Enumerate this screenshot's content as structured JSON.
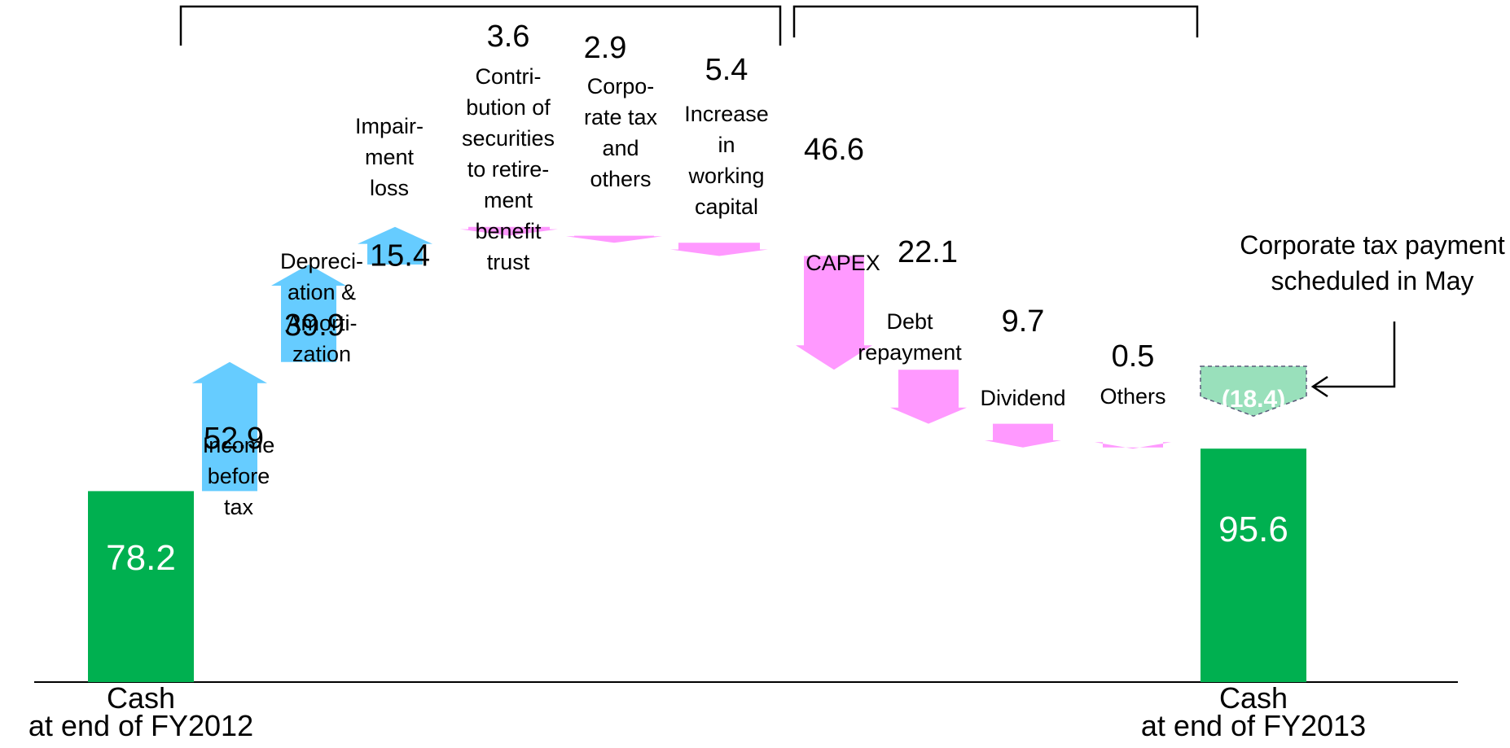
{
  "colors": {
    "cash": "#00B050",
    "increase": "#66CCFF",
    "decrease": "#FF99FF",
    "tax_scheduled": "#99E0BB",
    "text": "#000000",
    "cash_value_text": "#FFFFFF"
  },
  "chart_data": {
    "type": "waterfall",
    "title": "",
    "xlabel": "",
    "ylabel": "",
    "ylim": [
      0,
      200
    ],
    "grid": false,
    "legend": "none",
    "steps": [
      {
        "key": "start",
        "kind": "total",
        "value": 78.2,
        "value_label": "78.2",
        "label_lines": [
          "Cash",
          "at end of FY2012"
        ]
      },
      {
        "key": "income",
        "kind": "increase",
        "value": 52.9,
        "value_label": "52.9",
        "label_lines": [
          "Income",
          "before",
          "tax"
        ]
      },
      {
        "key": "depr",
        "kind": "increase",
        "value": 39.9,
        "value_label": "39.9",
        "label_lines": [
          "Depreci-",
          "ation &",
          "Amorti-",
          "zation"
        ]
      },
      {
        "key": "impair",
        "kind": "increase",
        "value": 15.4,
        "value_label": "15.4",
        "label_lines": [
          "Impair-",
          "ment",
          "loss"
        ]
      },
      {
        "key": "contrib",
        "kind": "decrease",
        "value": 3.6,
        "value_label": "3.6",
        "label_lines": [
          "Contri-",
          "bution of",
          "securities",
          "to retire-",
          "ment",
          "benefit",
          "trust"
        ]
      },
      {
        "key": "corptax",
        "kind": "decrease",
        "value": 2.9,
        "value_label": "2.9",
        "label_lines": [
          "Corpo-",
          "rate tax",
          "and",
          "others"
        ]
      },
      {
        "key": "wc",
        "kind": "decrease",
        "value": 5.4,
        "value_label": "5.4",
        "label_lines": [
          "Increase",
          "in",
          "working",
          "capital"
        ]
      },
      {
        "key": "capex",
        "kind": "decrease",
        "value": 46.6,
        "value_label": "46.6",
        "label_lines": [
          "CAPEX"
        ]
      },
      {
        "key": "debt",
        "kind": "decrease",
        "value": 22.1,
        "value_label": "22.1",
        "label_lines": [
          "Debt",
          "repayment"
        ]
      },
      {
        "key": "dividend",
        "kind": "decrease",
        "value": 9.7,
        "value_label": "9.7",
        "label_lines": [
          "Dividend"
        ]
      },
      {
        "key": "others",
        "kind": "decrease",
        "value": 0.5,
        "value_label": "0.5",
        "label_lines": [
          "Others"
        ]
      },
      {
        "key": "end",
        "kind": "total",
        "value": 95.6,
        "value_label": "95.6",
        "label_lines": [
          "Cash",
          "at end of FY2013"
        ]
      }
    ],
    "scheduled_payment": {
      "value": 18.4,
      "value_label": "(18.4)"
    },
    "annotation": {
      "lines": [
        "Corporate tax payment",
        "scheduled in May"
      ]
    }
  }
}
